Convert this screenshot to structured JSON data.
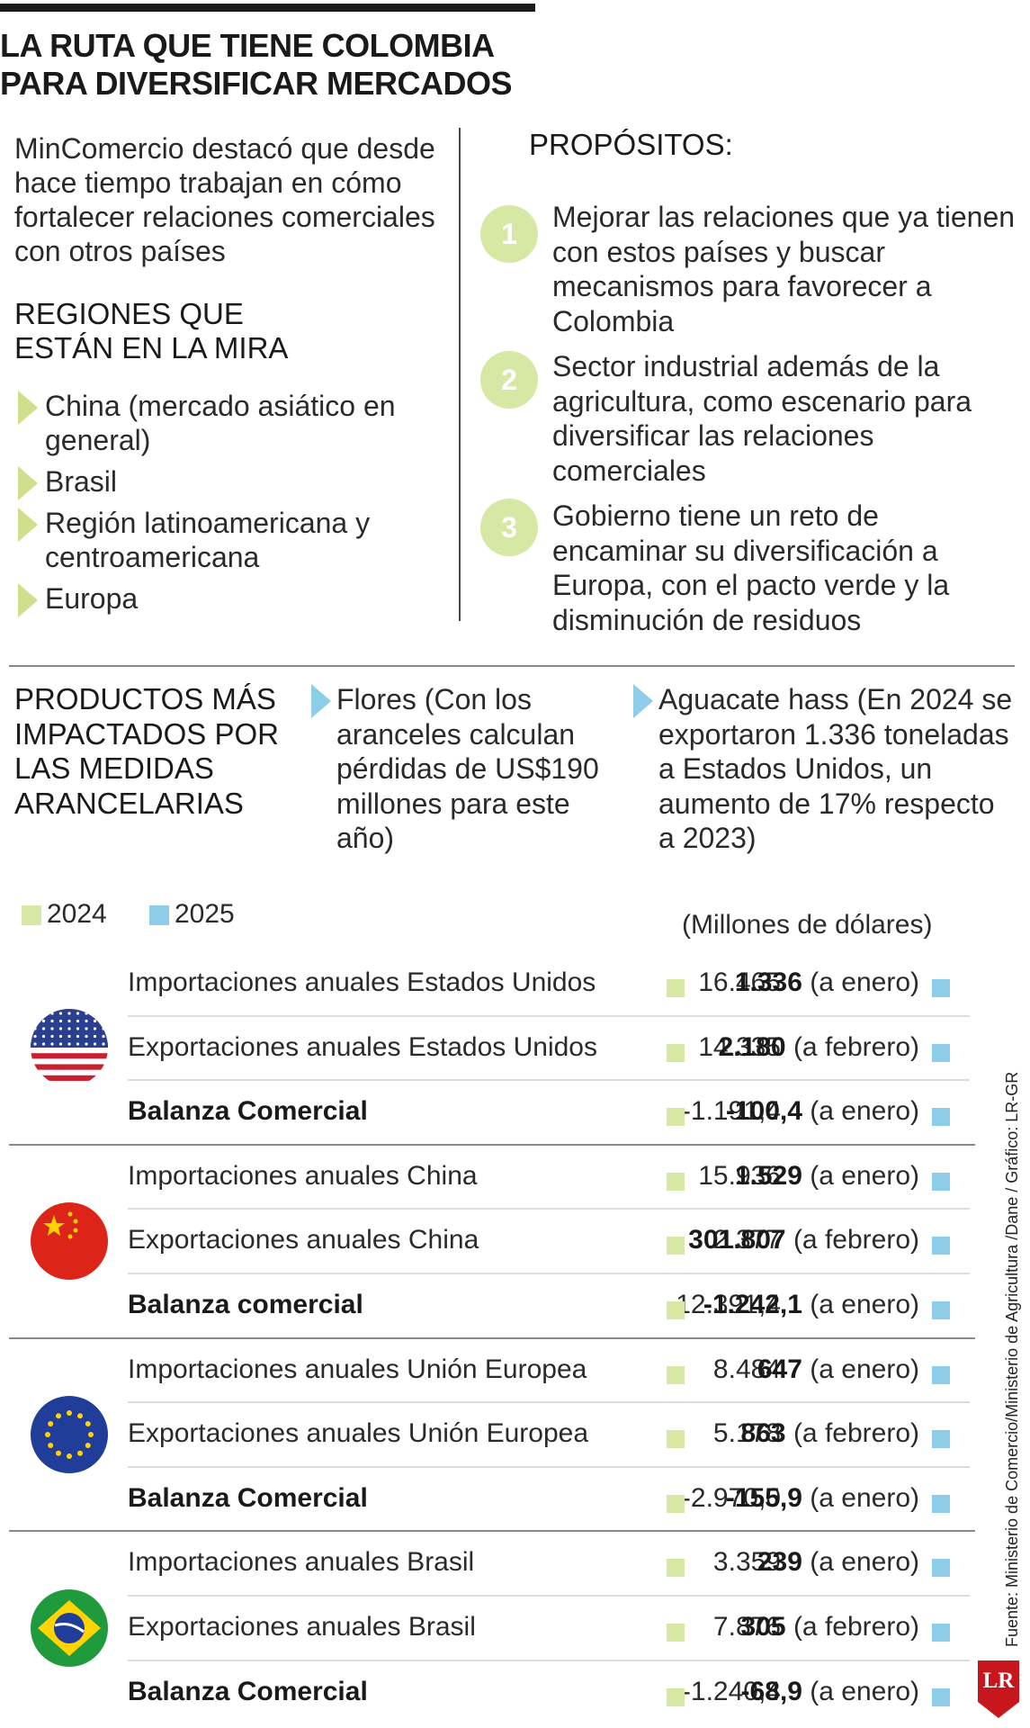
{
  "title_line1": "LA RUTA QUE TIENE COLOMBIA",
  "title_line2": "PARA DIVERSIFICAR MERCADOS",
  "lead_text": "MinComercio destacó que desde hace tiempo trabajan en cómo fortalecer relaciones comerciales con otros países",
  "regions": {
    "heading_line1": "REGIONES QUE",
    "heading_line2": "ESTÁN EN LA MIRA",
    "items": [
      "China (mercado asiático en general)",
      "Brasil",
      "Región latinoamericana y centroamericana",
      "Europa"
    ]
  },
  "purposes": {
    "heading": "PROPÓSITOS:",
    "items": [
      {
        "number": "1",
        "text": "Mejorar las relaciones que ya tienen con estos países y buscar mecanismos para favorecer a Colombia"
      },
      {
        "number": "2",
        "text": "Sector industrial además de la agricultura, como escenario para diversificar las relaciones comerciales"
      },
      {
        "number": "3",
        "text": "Gobierno tiene un reto de encaminar su diversificación a Europa, con el pacto verde y la disminución de residuos"
      }
    ]
  },
  "products": {
    "heading": "PRODUCTOS MÁS IMPACTADOS POR LAS MEDIDAS ARANCELARIAS",
    "items": [
      "Flores (Con los aranceles calculan pérdidas de US$190 millones para este año)",
      "Aguacate hass (En 2024 se exportaron 1.336 toneladas a Estados Unidos, un aumento de 17% respecto a 2023)"
    ]
  },
  "legend": {
    "y2024": "2024",
    "y2025": "2025",
    "units": "(Millones de dólares)"
  },
  "colors": {
    "y2024": "#d7e7a4",
    "y2025": "#8ecde8",
    "brand": "#c8161d"
  },
  "table": {
    "groups": [
      {
        "flag": "usa-flag-icon",
        "rows": [
          {
            "label": "Importaciones anuales Estados Unidos",
            "v2024": "16.465",
            "v2025": "1.336",
            "note": "(a enero)"
          },
          {
            "label": "Exportaciones anuales Estados Unidos",
            "v2024": "14.335",
            "v2025": "2.180",
            "note": "(a febrero)"
          },
          {
            "label": "Balanza Comercial",
            "v2024": "-1.191,4",
            "v2025": "-100,4",
            "note": "(a enero)"
          }
        ]
      },
      {
        "flag": "china-flag-icon",
        "rows": [
          {
            "label": "Importaciones anuales China",
            "v2024": "15.936",
            "v2025": "1.529",
            "note": "(a enero)"
          },
          {
            "label": "Exportaciones anuales China",
            "v2024": "2.377",
            "v2025": "301.807",
            "note": "(a febrero)"
          },
          {
            "label": "Balanza comercial",
            "v2024": "-12.391,4",
            "v2025": "-1.242,1",
            "note": "(a enero)"
          }
        ]
      },
      {
        "flag": "eu-flag-icon",
        "rows": [
          {
            "label": "Importaciones anuales Unión Europea",
            "v2024": "8.484",
            "v2025": "647",
            "note": "(a enero)"
          },
          {
            "label": "Exportaciones anuales Unión Europea",
            "v2024": "5.178",
            "v2025": "863",
            "note": "(a febrero)"
          },
          {
            "label": "Balanza Comercial",
            "v2024": "-2.970,0",
            "v2025": "-155,9",
            "note": "(a enero)"
          }
        ]
      },
      {
        "flag": "brazil-flag-icon",
        "rows": [
          {
            "label": "Importaciones anuales Brasil",
            "v2024": "3.359",
            "v2025": "239",
            "note": "(a enero)"
          },
          {
            "label": "Exportaciones anuales Brasil",
            "v2024": "7.876",
            "v2025": "305",
            "note": "(a febrero)"
          },
          {
            "label": "Balanza Comercial",
            "v2024": "-1.240,4",
            "v2025": "-68,9",
            "note": "(a enero)"
          }
        ]
      }
    ]
  },
  "source": "Fuente: Ministerio de Comercio/Ministerio de Agricultura /Dane / Gráfico: LR-GR",
  "logo": "LR"
}
